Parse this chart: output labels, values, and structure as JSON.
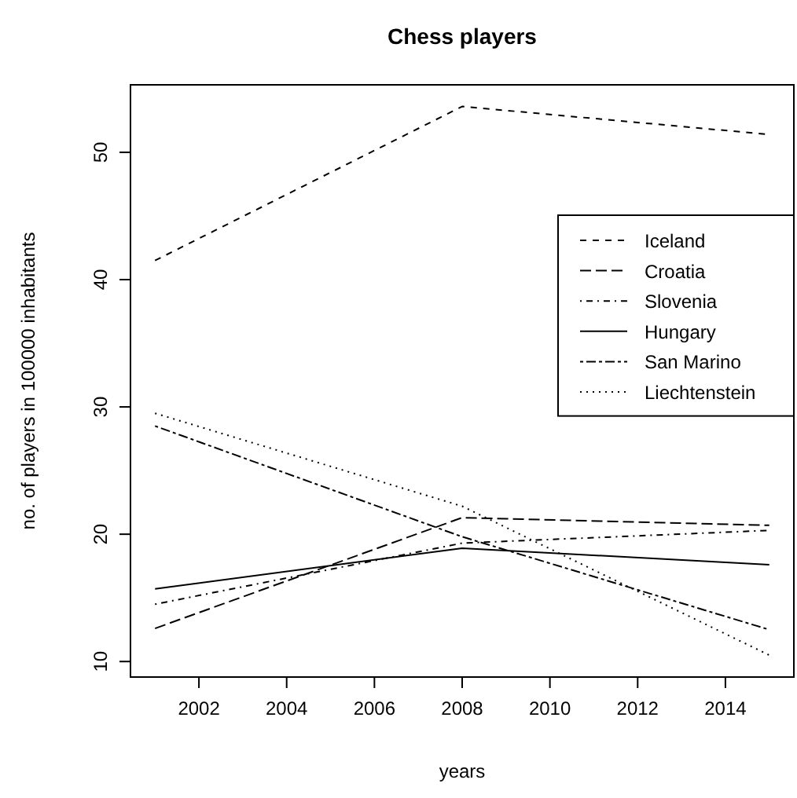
{
  "chart_data": {
    "type": "line",
    "title": "Chess players",
    "xlabel": "years",
    "ylabel": "no. of players in 100000 inhabitants",
    "x": [
      2001,
      2008,
      2015
    ],
    "series": [
      {
        "name": "Iceland",
        "color": "#000000",
        "line_style": "dashed",
        "values": [
          41.5,
          53.6,
          51.4
        ]
      },
      {
        "name": "Croatia",
        "color": "#000000",
        "line_style": "longdash",
        "values": [
          12.6,
          21.3,
          20.7
        ]
      },
      {
        "name": "Slovenia",
        "color": "#000000",
        "line_style": "dotdash",
        "values": [
          14.5,
          19.3,
          20.3
        ]
      },
      {
        "name": "Hungary",
        "color": "#000000",
        "line_style": "solid",
        "values": [
          15.7,
          18.9,
          17.6
        ]
      },
      {
        "name": "San Marino",
        "color": "#000000",
        "line_style": "twodash",
        "values": [
          28.5,
          19.8,
          12.5
        ]
      },
      {
        "name": "Liechtenstein",
        "color": "#000000",
        "line_style": "dotted",
        "values": [
          29.5,
          22.2,
          10.5
        ]
      }
    ],
    "xlim": [
      2000.44,
      2015.56
    ],
    "ylim": [
      8.78,
      55.3
    ],
    "xticks": [
      2002,
      2004,
      2006,
      2008,
      2010,
      2012,
      2014
    ],
    "yticks": [
      10,
      20,
      30,
      40,
      50
    ],
    "grid": false,
    "legend": "right"
  }
}
